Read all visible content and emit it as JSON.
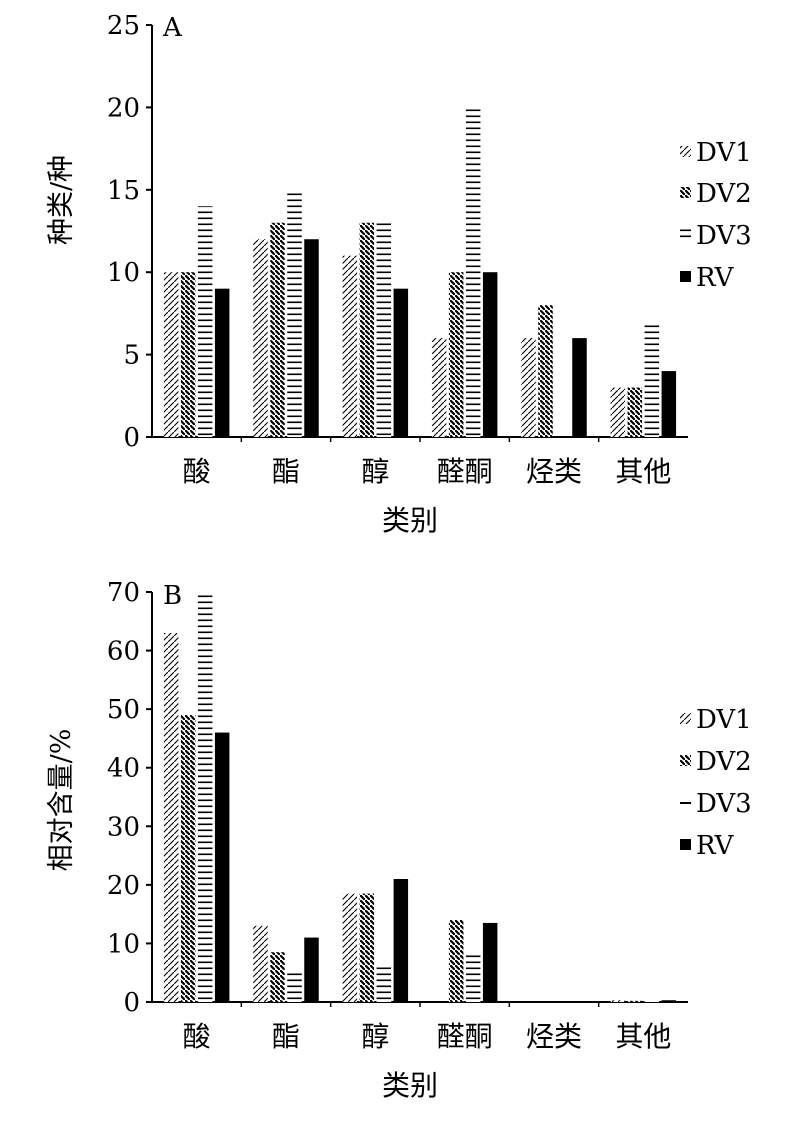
{
  "colors": {
    "axis": "#000000",
    "fill": "#000000",
    "background": "#ffffff"
  },
  "chart_data": [
    {
      "type": "bar",
      "panel_label": "A",
      "title": "",
      "xlabel": "类别",
      "ylabel": "种类/种",
      "ylim": [
        0,
        25
      ],
      "yticks": [
        0,
        5,
        10,
        15,
        20,
        25
      ],
      "grid": false,
      "legend_position": "right",
      "categories": [
        "酸",
        "酯",
        "醇",
        "醛酮",
        "烃类",
        "其他"
      ],
      "series": [
        {
          "name": "DV1",
          "pattern": "diagonal-light",
          "values": [
            10,
            12,
            11,
            6,
            6,
            3
          ]
        },
        {
          "name": "DV2",
          "pattern": "diagonal-dense",
          "values": [
            10,
            13,
            13,
            10,
            8,
            3
          ]
        },
        {
          "name": "DV3",
          "pattern": "horizontal",
          "values": [
            14,
            15,
            13,
            20,
            0,
            7
          ]
        },
        {
          "name": "RV",
          "pattern": "solid",
          "values": [
            9,
            12,
            9,
            10,
            6,
            4
          ]
        }
      ]
    },
    {
      "type": "bar",
      "panel_label": "B",
      "title": "",
      "xlabel": "类别",
      "ylabel": "相对含量/%",
      "ylim": [
        0,
        70
      ],
      "yticks": [
        0,
        10,
        20,
        30,
        40,
        50,
        60,
        70
      ],
      "grid": false,
      "legend_position": "right",
      "categories": [
        "酸",
        "酯",
        "醇",
        "醛酮",
        "烃类",
        "其他"
      ],
      "series": [
        {
          "name": "DV1",
          "pattern": "diagonal-light",
          "values": [
            63,
            13,
            18.5,
            0,
            0,
            0.3
          ]
        },
        {
          "name": "DV2",
          "pattern": "diagonal-dense",
          "values": [
            49,
            8.5,
            18.5,
            14,
            0,
            0.2
          ]
        },
        {
          "name": "DV3",
          "pattern": "horizontal",
          "values": [
            70,
            5,
            6,
            8,
            0,
            0.1
          ]
        },
        {
          "name": "RV",
          "pattern": "solid",
          "values": [
            46,
            11,
            21,
            13.5,
            0,
            0.3
          ]
        }
      ]
    }
  ]
}
